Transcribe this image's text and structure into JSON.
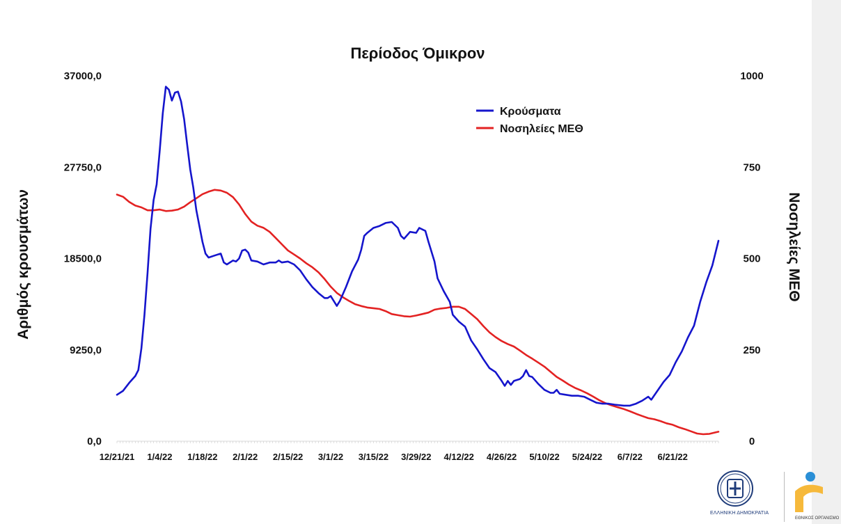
{
  "chart_data": {
    "type": "line",
    "title": "Περίοδος Όμικρον",
    "ylabel": "Αριθμός κρουσμάτων",
    "y2label": "Νοσηλείες ΜΕΘ",
    "x_tick_labels": [
      "12/21/21",
      "1/4/22",
      "1/18/22",
      "2/1/22",
      "2/15/22",
      "3/1/22",
      "3/15/22",
      "3/29/22",
      "4/12/22",
      "4/26/22",
      "5/10/22",
      "5/24/22",
      "6/7/22",
      "6/21/22"
    ],
    "x_start": "2021-12-21",
    "x_end": "2022-07-06",
    "y_ticks": [
      "0,0",
      "9250,0",
      "18500,0",
      "27750,0",
      "37000,0"
    ],
    "ylim": [
      0,
      37000
    ],
    "y2_ticks": [
      "0",
      "250",
      "500",
      "750",
      "1000"
    ],
    "y2lim": [
      0,
      1000
    ],
    "legend_position": "top-right",
    "grid": false,
    "series": [
      {
        "name": "Κρούσματα",
        "axis": "left",
        "color": "#1515cc",
        "points": [
          [
            "2021-12-21",
            4700
          ],
          [
            "2021-12-23",
            5100
          ],
          [
            "2021-12-25",
            5900
          ],
          [
            "2021-12-27",
            6600
          ],
          [
            "2021-12-28",
            7200
          ],
          [
            "2021-12-29",
            9400
          ],
          [
            "2021-12-30",
            12800
          ],
          [
            "2021-12-31",
            17000
          ],
          [
            "2022-01-01",
            21500
          ],
          [
            "2022-01-02",
            24400
          ],
          [
            "2022-01-03",
            26000
          ],
          [
            "2022-01-04",
            29400
          ],
          [
            "2022-01-05",
            33200
          ],
          [
            "2022-01-06",
            35900
          ],
          [
            "2022-01-07",
            35600
          ],
          [
            "2022-01-08",
            34500
          ],
          [
            "2022-01-09",
            35300
          ],
          [
            "2022-01-10",
            35400
          ],
          [
            "2022-01-11",
            34400
          ],
          [
            "2022-01-12",
            32600
          ],
          [
            "2022-01-13",
            30000
          ],
          [
            "2022-01-14",
            27500
          ],
          [
            "2022-01-15",
            25700
          ],
          [
            "2022-01-16",
            23400
          ],
          [
            "2022-01-17",
            21800
          ],
          [
            "2022-01-18",
            20200
          ],
          [
            "2022-01-19",
            19000
          ],
          [
            "2022-01-20",
            18600
          ],
          [
            "2022-01-22",
            18800
          ],
          [
            "2022-01-24",
            19000
          ],
          [
            "2022-01-25",
            18100
          ],
          [
            "2022-01-26",
            17900
          ],
          [
            "2022-01-28",
            18300
          ],
          [
            "2022-01-29",
            18200
          ],
          [
            "2022-01-30",
            18500
          ],
          [
            "2022-01-31",
            19300
          ],
          [
            "2022-02-01",
            19400
          ],
          [
            "2022-02-02",
            19100
          ],
          [
            "2022-02-03",
            18300
          ],
          [
            "2022-02-05",
            18200
          ],
          [
            "2022-02-07",
            17900
          ],
          [
            "2022-02-09",
            18100
          ],
          [
            "2022-02-11",
            18100
          ],
          [
            "2022-02-12",
            18300
          ],
          [
            "2022-02-13",
            18100
          ],
          [
            "2022-02-15",
            18200
          ],
          [
            "2022-02-17",
            17900
          ],
          [
            "2022-02-19",
            17300
          ],
          [
            "2022-02-21",
            16400
          ],
          [
            "2022-02-23",
            15600
          ],
          [
            "2022-02-25",
            15000
          ],
          [
            "2022-02-27",
            14500
          ],
          [
            "2022-02-28",
            14500
          ],
          [
            "2022-03-01",
            14700
          ],
          [
            "2022-03-02",
            14200
          ],
          [
            "2022-03-03",
            13700
          ],
          [
            "2022-03-04",
            14200
          ],
          [
            "2022-03-06",
            15600
          ],
          [
            "2022-03-08",
            17200
          ],
          [
            "2022-03-10",
            18400
          ],
          [
            "2022-03-11",
            19400
          ],
          [
            "2022-03-12",
            20800
          ],
          [
            "2022-03-13",
            21100
          ],
          [
            "2022-03-15",
            21600
          ],
          [
            "2022-03-17",
            21800
          ],
          [
            "2022-03-19",
            22100
          ],
          [
            "2022-03-21",
            22200
          ],
          [
            "2022-03-23",
            21600
          ],
          [
            "2022-03-24",
            20800
          ],
          [
            "2022-03-25",
            20500
          ],
          [
            "2022-03-27",
            21200
          ],
          [
            "2022-03-29",
            21100
          ],
          [
            "2022-03-30",
            21600
          ],
          [
            "2022-04-01",
            21300
          ],
          [
            "2022-04-02",
            20200
          ],
          [
            "2022-04-04",
            18200
          ],
          [
            "2022-04-05",
            16500
          ],
          [
            "2022-04-07",
            15200
          ],
          [
            "2022-04-09",
            14100
          ],
          [
            "2022-04-10",
            12800
          ],
          [
            "2022-04-12",
            12100
          ],
          [
            "2022-04-14",
            11600
          ],
          [
            "2022-04-16",
            10200
          ],
          [
            "2022-04-18",
            9300
          ],
          [
            "2022-04-20",
            8300
          ],
          [
            "2022-04-22",
            7400
          ],
          [
            "2022-04-24",
            7000
          ],
          [
            "2022-04-26",
            6100
          ],
          [
            "2022-04-27",
            5600
          ],
          [
            "2022-04-28",
            6100
          ],
          [
            "2022-04-29",
            5700
          ],
          [
            "2022-04-30",
            6100
          ],
          [
            "2022-05-02",
            6300
          ],
          [
            "2022-05-03",
            6600
          ],
          [
            "2022-05-04",
            7200
          ],
          [
            "2022-05-05",
            6600
          ],
          [
            "2022-05-06",
            6500
          ],
          [
            "2022-05-08",
            5800
          ],
          [
            "2022-05-10",
            5200
          ],
          [
            "2022-05-12",
            4900
          ],
          [
            "2022-05-13",
            4900
          ],
          [
            "2022-05-14",
            5200
          ],
          [
            "2022-05-15",
            4800
          ],
          [
            "2022-05-17",
            4700
          ],
          [
            "2022-05-19",
            4600
          ],
          [
            "2022-05-21",
            4600
          ],
          [
            "2022-05-23",
            4500
          ],
          [
            "2022-05-25",
            4200
          ],
          [
            "2022-05-27",
            3900
          ],
          [
            "2022-05-29",
            3800
          ],
          [
            "2022-05-31",
            3800
          ],
          [
            "2022-06-02",
            3700
          ],
          [
            "2022-06-05",
            3600
          ],
          [
            "2022-06-07",
            3600
          ],
          [
            "2022-06-09",
            3800
          ],
          [
            "2022-06-11",
            4100
          ],
          [
            "2022-06-13",
            4500
          ],
          [
            "2022-06-14",
            4200
          ],
          [
            "2022-06-16",
            5100
          ],
          [
            "2022-06-18",
            6000
          ],
          [
            "2022-06-20",
            6700
          ],
          [
            "2022-06-22",
            8000
          ],
          [
            "2022-06-24",
            9100
          ],
          [
            "2022-06-26",
            10500
          ],
          [
            "2022-06-28",
            11700
          ],
          [
            "2022-06-30",
            14100
          ],
          [
            "2022-07-02",
            16100
          ],
          [
            "2022-07-04",
            17800
          ],
          [
            "2022-07-06",
            20300
          ]
        ]
      },
      {
        "name": "Νοσηλείες ΜΕΘ",
        "axis": "right",
        "color": "#e32222",
        "points": [
          [
            "2021-12-21",
            675
          ],
          [
            "2021-12-23",
            669
          ],
          [
            "2021-12-25",
            655
          ],
          [
            "2021-12-27",
            645
          ],
          [
            "2021-12-29",
            640
          ],
          [
            "2021-12-31",
            632
          ],
          [
            "2022-01-02",
            632
          ],
          [
            "2022-01-04",
            634
          ],
          [
            "2022-01-06",
            630
          ],
          [
            "2022-01-08",
            631
          ],
          [
            "2022-01-10",
            634
          ],
          [
            "2022-01-12",
            642
          ],
          [
            "2022-01-14",
            654
          ],
          [
            "2022-01-16",
            665
          ],
          [
            "2022-01-18",
            676
          ],
          [
            "2022-01-20",
            683
          ],
          [
            "2022-01-22",
            688
          ],
          [
            "2022-01-24",
            686
          ],
          [
            "2022-01-26",
            680
          ],
          [
            "2022-01-28",
            668
          ],
          [
            "2022-01-30",
            648
          ],
          [
            "2022-02-01",
            622
          ],
          [
            "2022-02-03",
            601
          ],
          [
            "2022-02-05",
            590
          ],
          [
            "2022-02-07",
            584
          ],
          [
            "2022-02-09",
            573
          ],
          [
            "2022-02-11",
            556
          ],
          [
            "2022-02-13",
            539
          ],
          [
            "2022-02-15",
            522
          ],
          [
            "2022-02-17",
            511
          ],
          [
            "2022-02-19",
            500
          ],
          [
            "2022-02-21",
            487
          ],
          [
            "2022-02-23",
            476
          ],
          [
            "2022-02-25",
            462
          ],
          [
            "2022-02-27",
            444
          ],
          [
            "2022-03-01",
            423
          ],
          [
            "2022-03-03",
            406
          ],
          [
            "2022-03-05",
            394
          ],
          [
            "2022-03-07",
            384
          ],
          [
            "2022-03-09",
            375
          ],
          [
            "2022-03-11",
            370
          ],
          [
            "2022-03-13",
            366
          ],
          [
            "2022-03-15",
            364
          ],
          [
            "2022-03-17",
            362
          ],
          [
            "2022-03-19",
            356
          ],
          [
            "2022-03-21",
            348
          ],
          [
            "2022-03-23",
            345
          ],
          [
            "2022-03-25",
            342
          ],
          [
            "2022-03-27",
            341
          ],
          [
            "2022-03-29",
            344
          ],
          [
            "2022-03-31",
            348
          ],
          [
            "2022-04-02",
            352
          ],
          [
            "2022-04-04",
            360
          ],
          [
            "2022-04-06",
            363
          ],
          [
            "2022-04-08",
            365
          ],
          [
            "2022-04-10",
            368
          ],
          [
            "2022-04-12",
            368
          ],
          [
            "2022-04-14",
            362
          ],
          [
            "2022-04-16",
            348
          ],
          [
            "2022-04-18",
            334
          ],
          [
            "2022-04-20",
            315
          ],
          [
            "2022-04-22",
            298
          ],
          [
            "2022-04-24",
            285
          ],
          [
            "2022-04-26",
            274
          ],
          [
            "2022-04-28",
            266
          ],
          [
            "2022-04-30",
            259
          ],
          [
            "2022-05-02",
            248
          ],
          [
            "2022-05-04",
            236
          ],
          [
            "2022-05-06",
            226
          ],
          [
            "2022-05-08",
            215
          ],
          [
            "2022-05-10",
            204
          ],
          [
            "2022-05-12",
            190
          ],
          [
            "2022-05-14",
            176
          ],
          [
            "2022-05-16",
            166
          ],
          [
            "2022-05-18",
            155
          ],
          [
            "2022-05-20",
            146
          ],
          [
            "2022-05-22",
            139
          ],
          [
            "2022-05-24",
            131
          ],
          [
            "2022-05-26",
            122
          ],
          [
            "2022-05-28",
            112
          ],
          [
            "2022-05-30",
            104
          ],
          [
            "2022-06-01",
            98
          ],
          [
            "2022-06-03",
            93
          ],
          [
            "2022-06-05",
            88
          ],
          [
            "2022-06-07",
            82
          ],
          [
            "2022-06-09",
            75
          ],
          [
            "2022-06-11",
            69
          ],
          [
            "2022-06-13",
            63
          ],
          [
            "2022-06-15",
            60
          ],
          [
            "2022-06-17",
            55
          ],
          [
            "2022-06-19",
            49
          ],
          [
            "2022-06-21",
            45
          ],
          [
            "2022-06-23",
            38
          ],
          [
            "2022-06-25",
            33
          ],
          [
            "2022-06-27",
            27
          ],
          [
            "2022-06-29",
            21
          ],
          [
            "2022-07-01",
            19
          ],
          [
            "2022-07-03",
            20
          ],
          [
            "2022-07-05",
            24
          ],
          [
            "2022-07-06",
            26
          ]
        ]
      }
    ]
  },
  "logos": {
    "emblem_caption": "ΕΛΛΗΝΙΚΗ ΔΗΜΟΚΡΑΤΙΑ",
    "org_caption": "ΕΘΝΙΚΟΣ ΟΡΓΑΝΙΣΜΟ",
    "emblem_color": "#1f3c7a",
    "org_colors": [
      "#f6b93b",
      "#2a8fd6"
    ]
  }
}
